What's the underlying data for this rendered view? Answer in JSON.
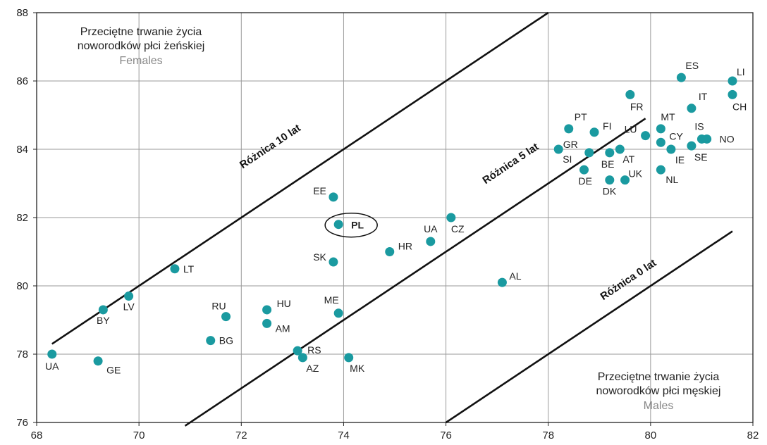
{
  "chart_data": {
    "type": "scatter",
    "xlim": [
      68,
      82
    ],
    "ylim": [
      76,
      88
    ],
    "x_ticks": [
      68,
      70,
      72,
      74,
      76,
      78,
      80,
      82
    ],
    "y_ticks": [
      76,
      78,
      80,
      82,
      84,
      86,
      88
    ],
    "grid": true,
    "point_color": "#1a9aa0",
    "ylabel": {
      "line1": "Przeciętne trwanie życia",
      "line2": "noworodków płci żeńskiej",
      "sub": "Females"
    },
    "xlabel": {
      "line1": "Przeciętne trwanie życia",
      "line2": "noworodków płci męskiej",
      "sub": "Males"
    },
    "reference_lines": [
      {
        "label": "Różnica 10 lat",
        "offset": 10,
        "x_from": 68.3,
        "x_to": 78
      },
      {
        "label": "Różnica 5 lat",
        "offset": 5,
        "x_from": 70.9,
        "x_to": 79.9
      },
      {
        "label": "Różnica 0 lat",
        "offset": 0,
        "x_from": 76,
        "x_to": 81.6
      }
    ],
    "highlight": "PL",
    "points": [
      {
        "label": "UA",
        "x": 68.3,
        "y": 78.0
      },
      {
        "label": "GE",
        "x": 69.2,
        "y": 77.8
      },
      {
        "label": "BY",
        "x": 69.3,
        "y": 79.3
      },
      {
        "label": "LV",
        "x": 69.8,
        "y": 79.7
      },
      {
        "label": "LT",
        "x": 70.7,
        "y": 80.5
      },
      {
        "label": "BG",
        "x": 71.4,
        "y": 78.4
      },
      {
        "label": "RU",
        "x": 71.7,
        "y": 79.1
      },
      {
        "label": "HU",
        "x": 72.5,
        "y": 79.3
      },
      {
        "label": "AM",
        "x": 72.5,
        "y": 78.9
      },
      {
        "label": "RS",
        "x": 73.1,
        "y": 78.1
      },
      {
        "label": "AZ",
        "x": 73.2,
        "y": 77.9
      },
      {
        "label": "EE",
        "x": 73.8,
        "y": 82.6
      },
      {
        "label": "SK",
        "x": 73.8,
        "y": 80.7
      },
      {
        "label": "PL",
        "x": 73.9,
        "y": 81.8
      },
      {
        "label": "ME",
        "x": 73.9,
        "y": 79.2
      },
      {
        "label": "MK",
        "x": 74.1,
        "y": 77.9
      },
      {
        "label": "HR",
        "x": 74.9,
        "y": 81.0
      },
      {
        "label": "UA",
        "x": 75.7,
        "y": 81.3
      },
      {
        "label": "CZ",
        "x": 76.1,
        "y": 82.0
      },
      {
        "label": "AL",
        "x": 77.1,
        "y": 80.1
      },
      {
        "label": "SI",
        "x": 78.2,
        "y": 84.0
      },
      {
        "label": "PT",
        "x": 78.4,
        "y": 84.6
      },
      {
        "label": "DE",
        "x": 78.7,
        "y": 83.4
      },
      {
        "label": "GR",
        "x": 78.8,
        "y": 83.9
      },
      {
        "label": "FI",
        "x": 78.9,
        "y": 84.5
      },
      {
        "label": "BE",
        "x": 79.2,
        "y": 83.9
      },
      {
        "label": "DK",
        "x": 79.2,
        "y": 83.1
      },
      {
        "label": "AT",
        "x": 79.4,
        "y": 84.0
      },
      {
        "label": "UK",
        "x": 79.5,
        "y": 83.1
      },
      {
        "label": "FR",
        "x": 79.6,
        "y": 85.6
      },
      {
        "label": "LU",
        "x": 79.9,
        "y": 84.4
      },
      {
        "label": "MT",
        "x": 80.2,
        "y": 84.6
      },
      {
        "label": "CY",
        "x": 80.2,
        "y": 84.2
      },
      {
        "label": "NL",
        "x": 80.2,
        "y": 83.4
      },
      {
        "label": "IE",
        "x": 80.4,
        "y": 84.0
      },
      {
        "label": "ES",
        "x": 80.6,
        "y": 86.1
      },
      {
        "label": "IT",
        "x": 80.8,
        "y": 85.2
      },
      {
        "label": "SE",
        "x": 80.8,
        "y": 84.1
      },
      {
        "label": "IS",
        "x": 81.0,
        "y": 84.3
      },
      {
        "label": "NO",
        "x": 81.1,
        "y": 84.3
      },
      {
        "label": "LI",
        "x": 81.6,
        "y": 86.0
      },
      {
        "label": "CH",
        "x": 81.6,
        "y": 85.6
      }
    ]
  }
}
